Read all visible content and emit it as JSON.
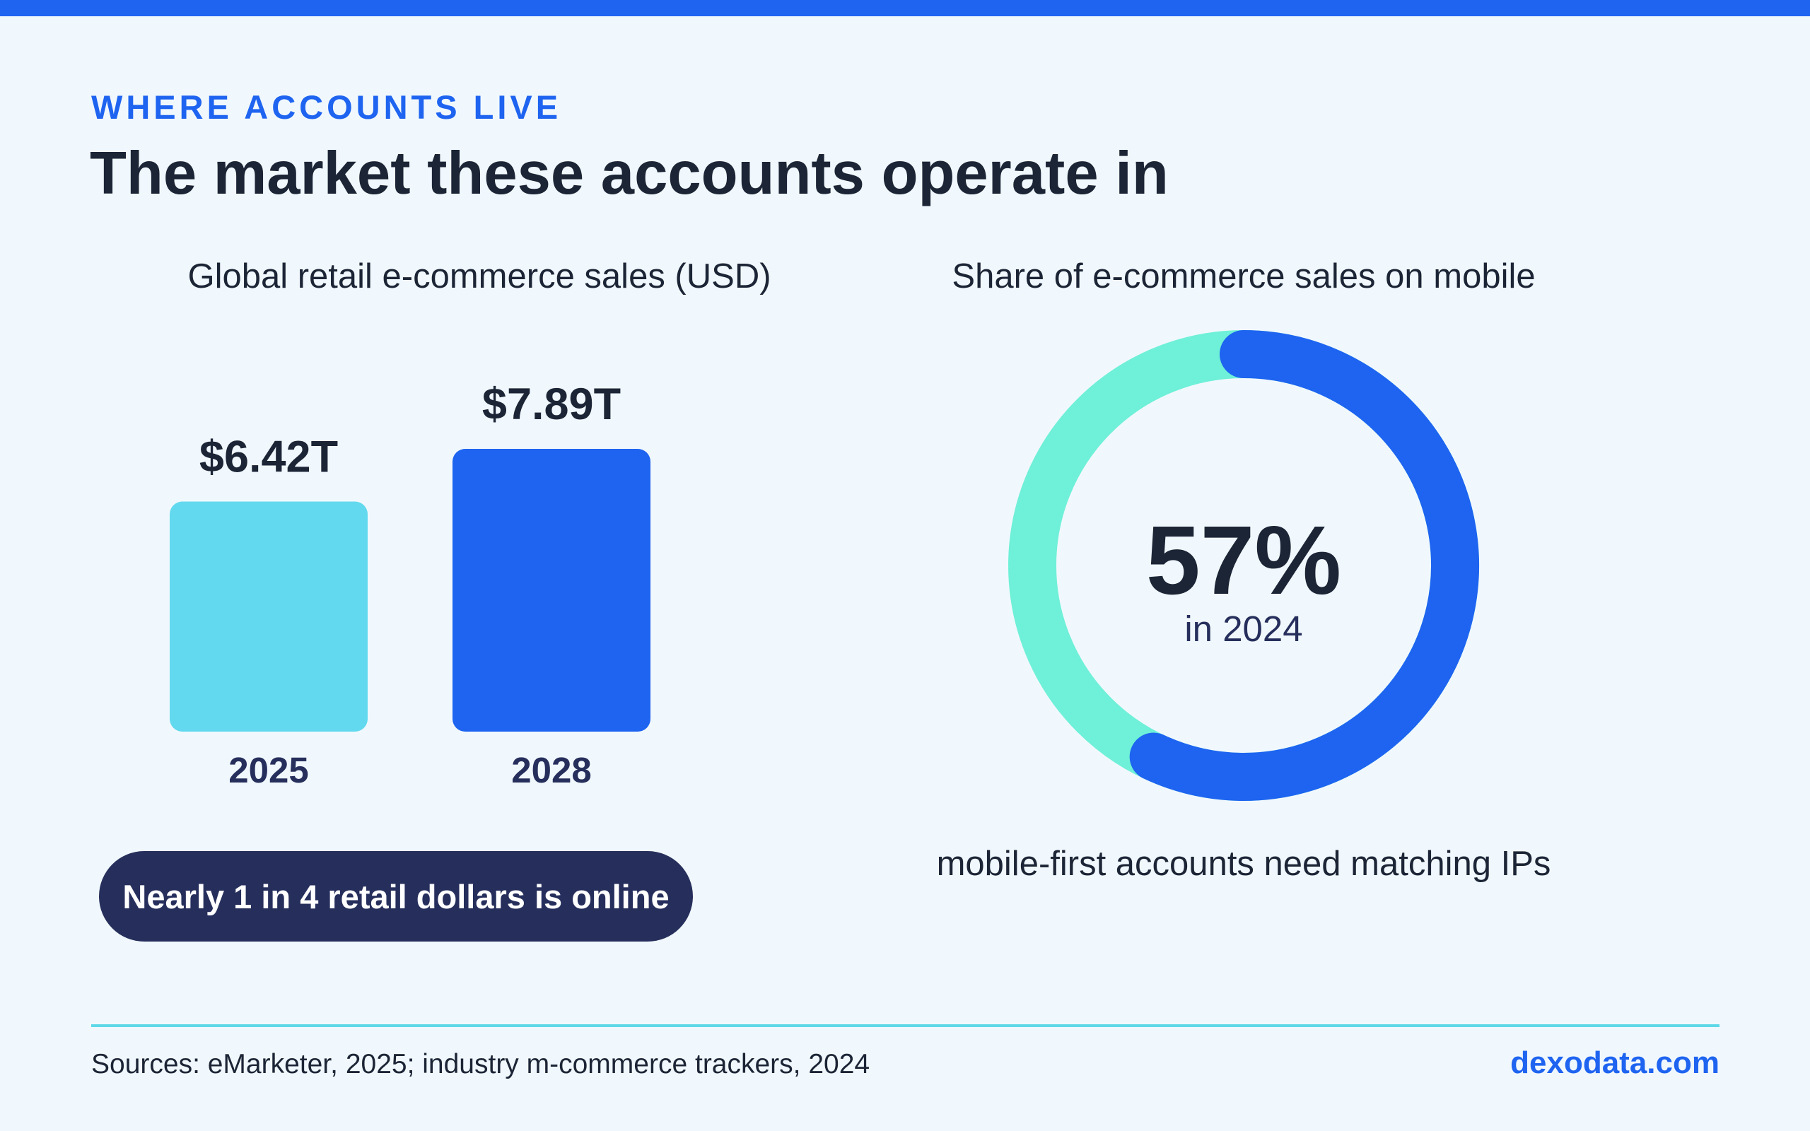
{
  "header": {
    "eyebrow": "WHERE ACCOUNTS LIVE",
    "title": "The market these accounts operate in"
  },
  "colors": {
    "accent": "#1e64f0",
    "bar_2025": "#62d9ee",
    "bar_2028": "#1e64f0",
    "donut_mobile": "#1e64f0",
    "donut_rest": "#6ff0d8",
    "pill_bg": "#262f5c",
    "text_dark": "#1c2536"
  },
  "chart_data": [
    {
      "type": "bar",
      "title": "Global retail e-commerce sales (USD)",
      "categories": [
        "2025",
        "2028"
      ],
      "values": [
        6.42,
        7.89
      ],
      "value_labels": [
        "$6.42T",
        "$7.89T"
      ],
      "xlabel": "",
      "ylabel": "",
      "grid": false,
      "callout": "Nearly 1 in 4 retail dollars is online"
    },
    {
      "type": "pie",
      "title": "Share of e-commerce sales on mobile",
      "values": [
        57,
        43
      ],
      "center_value": "57%",
      "center_sub": "in 2024",
      "caption": "mobile-first accounts need matching IPs"
    }
  ],
  "footer": {
    "sources": "Sources: eMarketer, 2025; industry m-commerce trackers, 2024",
    "brand": "dexodata.com"
  }
}
